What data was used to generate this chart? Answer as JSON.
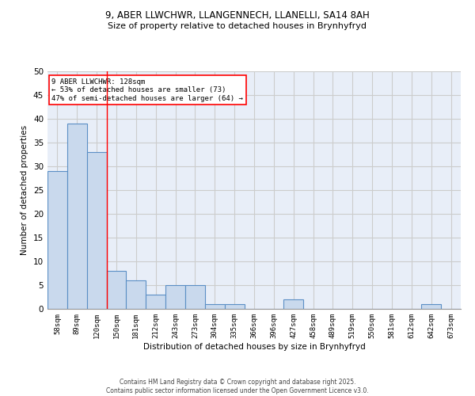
{
  "title_line1": "9, ABER LLWCHWR, LLANGENNECH, LLANELLI, SA14 8AH",
  "title_line2": "Size of property relative to detached houses in Brynhyfryd",
  "xlabel": "Distribution of detached houses by size in Brynhyfryd",
  "ylabel": "Number of detached properties",
  "categories": [
    "58sqm",
    "89sqm",
    "120sqm",
    "150sqm",
    "181sqm",
    "212sqm",
    "243sqm",
    "273sqm",
    "304sqm",
    "335sqm",
    "366sqm",
    "396sqm",
    "427sqm",
    "458sqm",
    "489sqm",
    "519sqm",
    "550sqm",
    "581sqm",
    "612sqm",
    "642sqm",
    "673sqm"
  ],
  "values": [
    29,
    39,
    33,
    8,
    6,
    3,
    5,
    5,
    1,
    1,
    0,
    0,
    2,
    0,
    0,
    0,
    0,
    0,
    0,
    1,
    0
  ],
  "bar_color": "#c9d9ed",
  "bar_edge_color": "#5b8fc5",
  "bar_linewidth": 0.8,
  "red_line_index": 2,
  "annotation_text": "9 ABER LLWCHWR: 128sqm\n← 53% of detached houses are smaller (73)\n47% of semi-detached houses are larger (64) →",
  "annotation_box_color": "white",
  "annotation_box_edge": "red",
  "ylim": [
    0,
    50
  ],
  "yticks": [
    0,
    5,
    10,
    15,
    20,
    25,
    30,
    35,
    40,
    45,
    50
  ],
  "grid_color": "#cccccc",
  "bg_color": "#e8eef8",
  "footer_line1": "Contains HM Land Registry data © Crown copyright and database right 2025.",
  "footer_line2": "Contains public sector information licensed under the Open Government Licence v3.0."
}
